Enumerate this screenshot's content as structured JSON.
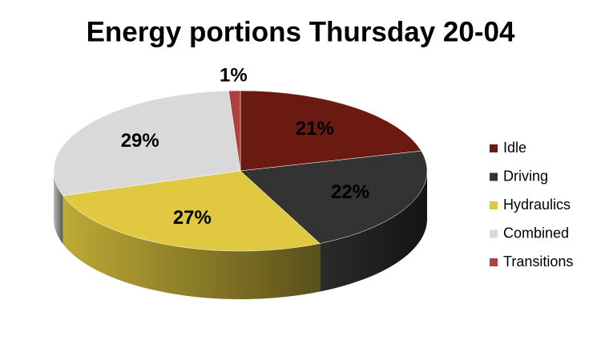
{
  "chart_data": {
    "type": "pie3d",
    "title": "Energy portions Thursday 20-04",
    "series": [
      {
        "name": "Idle",
        "color": "#6b1a12",
        "values": [
          21
        ],
        "value_labels": [
          "21%"
        ]
      },
      {
        "name": "Driving",
        "color": "#333333",
        "values": [
          22
        ],
        "value_labels": [
          "22%"
        ]
      },
      {
        "name": "Hydraulics",
        "color": "#e0c840",
        "values": [
          27
        ],
        "value_labels": [
          "27%"
        ]
      },
      {
        "name": "Combined",
        "color": "#d9d9d9",
        "values": [
          29
        ],
        "value_labels": [
          "29%"
        ]
      },
      {
        "name": "Transitions",
        "color": "#b04040",
        "values": [
          1
        ],
        "value_labels": [
          "1%"
        ]
      }
    ],
    "legend": "right"
  }
}
